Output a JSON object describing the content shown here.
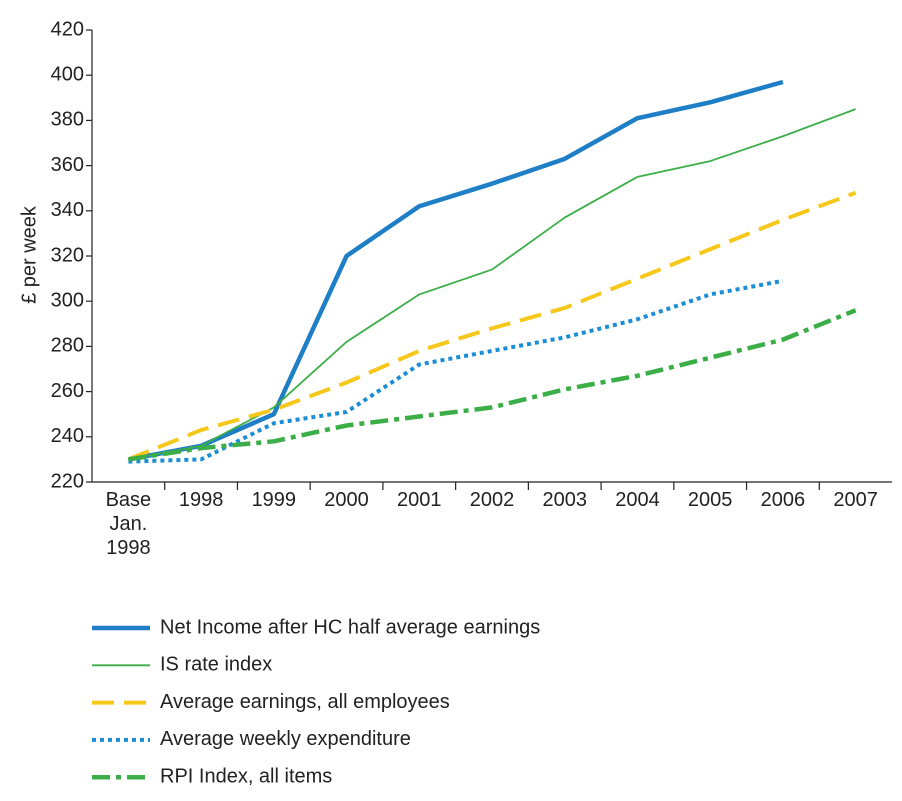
{
  "chart_data": {
    "type": "line",
    "ylabel": "£ per week",
    "categories": [
      "Base Jan. 1998",
      "1998",
      "1999",
      "2000",
      "2001",
      "2002",
      "2003",
      "2004",
      "2005",
      "2006",
      "2007"
    ],
    "ylim": [
      220,
      420
    ],
    "yticks": [
      220,
      240,
      260,
      280,
      300,
      320,
      340,
      360,
      380,
      400,
      420
    ],
    "series": [
      {
        "name": "Net Income after HC half average earnings",
        "color": "#1f7fc6",
        "line_style": "solid-thick",
        "values": [
          230,
          236,
          250,
          320,
          342,
          352,
          363,
          381,
          388,
          397,
          null
        ]
      },
      {
        "name": "IS rate index",
        "color": "#3cae48",
        "line_style": "solid",
        "values": [
          230,
          236,
          253,
          282,
          303,
          314,
          337,
          355,
          362,
          373,
          385
        ]
      },
      {
        "name": "Average earnings, all employees",
        "color": "#f6c81c",
        "line_style": "dashed",
        "values": [
          230,
          243,
          252,
          264,
          278,
          288,
          297,
          310,
          323,
          336,
          348
        ]
      },
      {
        "name": "Average weekly expenditure",
        "color": "#1c8ed6",
        "line_style": "dotted",
        "values": [
          229,
          230,
          246,
          251,
          272,
          278,
          284,
          292,
          303,
          309,
          null
        ]
      },
      {
        "name": "RPI Index, all items",
        "color": "#3cae48",
        "line_style": "dash-dot",
        "values": [
          230,
          235,
          238,
          245,
          249,
          253,
          261,
          267,
          275,
          283,
          296
        ]
      }
    ]
  }
}
